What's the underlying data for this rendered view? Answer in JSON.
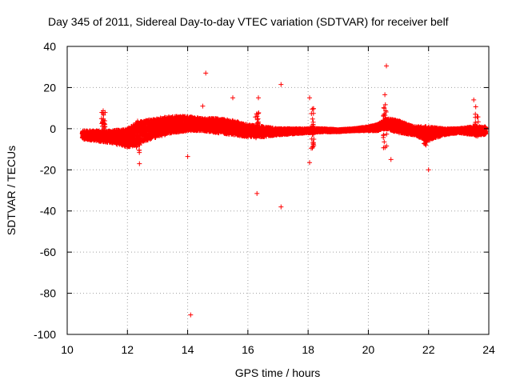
{
  "chart_data": {
    "type": "scatter",
    "title": "Day 345 of 2011, Sidereal Day-to-day VTEC variation (SDTVAR) for receiver belf",
    "xlabel": "GPS time / hours",
    "ylabel": "SDTVAR / TECUs",
    "xlim": [
      10,
      24
    ],
    "ylim": [
      -100,
      40
    ],
    "xticks": [
      10,
      12,
      14,
      16,
      18,
      20,
      22,
      24
    ],
    "yticks": [
      -100,
      -80,
      -60,
      -40,
      -20,
      0,
      20,
      40
    ],
    "grid": true,
    "marker": "+",
    "color": "#ff0000",
    "band": [
      [
        10.5,
        -5.0,
        -1.0
      ],
      [
        11.0,
        -6.0,
        -1.0
      ],
      [
        11.5,
        -7.0,
        -1.0
      ],
      [
        12.0,
        -9.0,
        0.0
      ],
      [
        12.3,
        -8.0,
        3.0
      ],
      [
        12.6,
        -6.0,
        4.0
      ],
      [
        13.0,
        -4.0,
        5.0
      ],
      [
        13.5,
        -2.0,
        6.0
      ],
      [
        14.0,
        -1.0,
        6.0
      ],
      [
        14.5,
        -1.0,
        5.0
      ],
      [
        15.0,
        -2.0,
        5.0
      ],
      [
        15.5,
        -3.0,
        4.0
      ],
      [
        16.0,
        -4.0,
        2.0
      ],
      [
        16.5,
        -4.0,
        1.0
      ],
      [
        17.0,
        -3.0,
        0.0
      ],
      [
        17.5,
        -2.5,
        0.0
      ],
      [
        18.0,
        -2.0,
        0.0
      ],
      [
        18.5,
        -1.5,
        0.0
      ],
      [
        19.0,
        -1.5,
        -0.5
      ],
      [
        19.5,
        -1.0,
        0.0
      ],
      [
        20.0,
        -1.0,
        1.0
      ],
      [
        20.3,
        -1.0,
        2.0
      ],
      [
        20.6,
        0.0,
        5.0
      ],
      [
        21.0,
        -2.0,
        4.0
      ],
      [
        21.5,
        -3.0,
        1.0
      ],
      [
        22.0,
        -6.0,
        1.0
      ],
      [
        22.5,
        -3.0,
        0.0
      ],
      [
        23.0,
        -2.0,
        0.0
      ],
      [
        23.5,
        -3.0,
        1.0
      ],
      [
        23.9,
        -3.0,
        1.0
      ]
    ],
    "spikes": [
      [
        11.2,
        -2.0,
        10.0
      ],
      [
        12.35,
        -12.0,
        4.0
      ],
      [
        16.3,
        -6.0,
        9.0
      ],
      [
        18.15,
        -10.0,
        10.0
      ],
      [
        20.55,
        -10.0,
        12.0
      ],
      [
        21.9,
        -8.0,
        2.0
      ],
      [
        23.6,
        -5.0,
        12.0
      ]
    ],
    "outliers": [
      [
        14.6,
        27.0
      ],
      [
        20.6,
        30.5
      ],
      [
        17.1,
        21.5
      ],
      [
        15.5,
        15.0
      ],
      [
        16.35,
        15.0
      ],
      [
        18.05,
        15.0
      ],
      [
        23.5,
        14.0
      ],
      [
        20.55,
        16.5
      ],
      [
        14.5,
        11.0
      ],
      [
        12.4,
        -17.0
      ],
      [
        14.0,
        -13.5
      ],
      [
        18.05,
        -16.5
      ],
      [
        20.75,
        -15.0
      ],
      [
        22.0,
        -20.0
      ],
      [
        16.3,
        -31.5
      ],
      [
        17.1,
        -38.0
      ],
      [
        14.1,
        -90.5
      ]
    ]
  }
}
